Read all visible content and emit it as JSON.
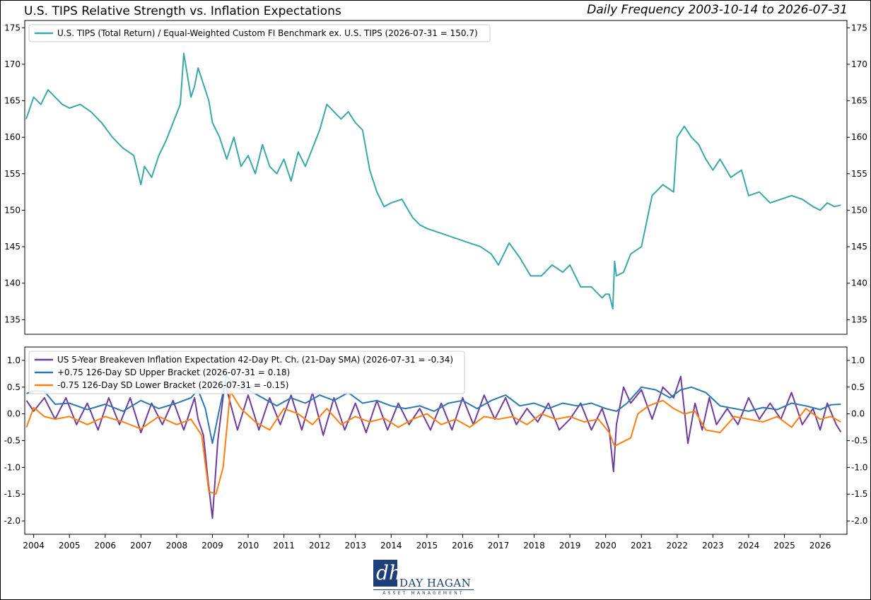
{
  "header": {
    "title": "U.S. TIPS Relative Strength vs. Inflation Expectations",
    "frequency": "Daily Frequency 2003-10-14 to 2026-07-31"
  },
  "logo": {
    "name": "DAY HAGAN",
    "sub": "ASSET MANAGEMENT",
    "mark": "dh"
  },
  "chart_data": [
    {
      "type": "line",
      "ylim": [
        133,
        176
      ],
      "xlim": [
        2003.75,
        2026.75
      ],
      "y_ticks": [
        135,
        140,
        145,
        150,
        155,
        160,
        165,
        170,
        175
      ],
      "y_tick_labels": [
        "135",
        "140",
        "145",
        "150",
        "155",
        "160",
        "165",
        "170",
        "175"
      ],
      "legend_location": "upper-left",
      "colors": {
        "tips": "#3aa8a8"
      },
      "series": [
        {
          "name": "U.S. TIPS (Total Return) / Equal-Weighted Custom FI Benchmark ex. U.S. TIPS (2026-07-31 = 150.7)",
          "x": [
            2003.79,
            2004.0,
            2004.2,
            2004.4,
            2004.6,
            2004.8,
            2005.0,
            2005.3,
            2005.6,
            2005.9,
            2006.2,
            2006.5,
            2006.8,
            2007.0,
            2007.1,
            2007.3,
            2007.5,
            2007.7,
            2007.9,
            2008.1,
            2008.2,
            2008.4,
            2008.5,
            2008.6,
            2008.7,
            2008.9,
            2009.0,
            2009.2,
            2009.4,
            2009.6,
            2009.8,
            2010.0,
            2010.2,
            2010.4,
            2010.6,
            2010.8,
            2011.0,
            2011.2,
            2011.4,
            2011.6,
            2011.8,
            2012.0,
            2012.2,
            2012.4,
            2012.6,
            2012.8,
            2013.0,
            2013.2,
            2013.4,
            2013.6,
            2013.8,
            2014.0,
            2014.3,
            2014.6,
            2014.8,
            2015.0,
            2015.3,
            2015.6,
            2015.9,
            2016.2,
            2016.5,
            2016.8,
            2017.0,
            2017.3,
            2017.6,
            2017.9,
            2018.2,
            2018.5,
            2018.8,
            2019.0,
            2019.3,
            2019.6,
            2019.9,
            2020.0,
            2020.1,
            2020.2,
            2020.25,
            2020.3,
            2020.5,
            2020.7,
            2021.0,
            2021.3,
            2021.6,
            2021.9,
            2022.0,
            2022.2,
            2022.4,
            2022.6,
            2022.8,
            2023.0,
            2023.2,
            2023.5,
            2023.8,
            2024.0,
            2024.3,
            2024.6,
            2024.9,
            2025.2,
            2025.5,
            2025.8,
            2026.0,
            2026.2,
            2026.4,
            2026.58
          ],
          "y": [
            162.5,
            165.5,
            164.5,
            166.5,
            165.5,
            164.5,
            164.0,
            164.5,
            163.5,
            162.0,
            160.0,
            158.5,
            157.5,
            153.5,
            156.0,
            154.5,
            157.5,
            159.5,
            162.0,
            164.5,
            171.5,
            165.5,
            167.0,
            169.5,
            168.0,
            165.0,
            162.0,
            160.0,
            157.0,
            160.0,
            156.0,
            157.5,
            155.0,
            159.0,
            156.0,
            155.0,
            157.0,
            154.0,
            158.0,
            156.0,
            158.5,
            161.0,
            164.5,
            163.5,
            162.5,
            163.5,
            162.0,
            161.0,
            155.5,
            152.5,
            150.5,
            151.0,
            151.5,
            149.0,
            148.0,
            147.5,
            147.0,
            146.5,
            146.0,
            145.5,
            145.0,
            144.0,
            142.5,
            145.5,
            143.5,
            141.0,
            141.0,
            142.5,
            141.5,
            142.5,
            139.5,
            139.5,
            138.0,
            138.5,
            138.5,
            136.5,
            143.0,
            141.0,
            141.5,
            144.0,
            145.0,
            152.0,
            153.5,
            152.5,
            160.0,
            161.5,
            160.0,
            159.0,
            157.0,
            155.5,
            157.0,
            154.5,
            155.5,
            152.0,
            152.5,
            151.0,
            151.5,
            152.0,
            151.5,
            150.5,
            150.0,
            151.0,
            150.5,
            150.7
          ]
        }
      ]
    },
    {
      "type": "line",
      "ylim": [
        -2.25,
        1.25
      ],
      "xlim": [
        2003.75,
        2026.75
      ],
      "y_ticks": [
        -2.0,
        -1.5,
        -1.0,
        -0.5,
        0.0,
        0.5,
        1.0
      ],
      "y_tick_labels": [
        "-2.0",
        "-1.5",
        "-1.0",
        "-0.5",
        "0.0",
        "0.5",
        "1.0"
      ],
      "x_ticks": [
        2004,
        2005,
        2006,
        2007,
        2008,
        2009,
        2010,
        2011,
        2012,
        2013,
        2014,
        2015,
        2016,
        2017,
        2018,
        2019,
        2020,
        2021,
        2022,
        2023,
        2024,
        2025,
        2026
      ],
      "x_tick_labels": [
        "2004",
        "2005",
        "2006",
        "2007",
        "2008",
        "2009",
        "2010",
        "2011",
        "2012",
        "2013",
        "2014",
        "2015",
        "2016",
        "2017",
        "2018",
        "2019",
        "2020",
        "2021",
        "2022",
        "2023",
        "2024",
        "2025",
        "2026"
      ],
      "legend_location": "upper-left",
      "colors": {
        "breakeven": "#6f3c9e",
        "upper": "#2a77b4",
        "lower": "#ff7f0e"
      },
      "series": [
        {
          "name": "US 5-Year Breakeven Inflation Expectation 42-Day Pt. Ch. (21-Day SMA) (2026-07-31 = -0.34)",
          "x": [
            2003.8,
            2004.0,
            2004.3,
            2004.6,
            2004.9,
            2005.2,
            2005.5,
            2005.8,
            2006.1,
            2006.4,
            2006.7,
            2007.0,
            2007.3,
            2007.6,
            2007.9,
            2008.2,
            2008.5,
            2008.6,
            2008.75,
            2008.87,
            2009.0,
            2009.15,
            2009.35,
            2009.5,
            2009.7,
            2010.0,
            2010.3,
            2010.6,
            2010.9,
            2011.2,
            2011.5,
            2011.8,
            2012.1,
            2012.4,
            2012.7,
            2013.0,
            2013.3,
            2013.6,
            2013.9,
            2014.2,
            2014.5,
            2014.8,
            2015.1,
            2015.4,
            2015.7,
            2016.0,
            2016.3,
            2016.6,
            2016.9,
            2017.2,
            2017.5,
            2017.8,
            2018.1,
            2018.4,
            2018.7,
            2019.0,
            2019.3,
            2019.6,
            2019.9,
            2020.0,
            2020.1,
            2020.22,
            2020.3,
            2020.5,
            2020.7,
            2021.0,
            2021.3,
            2021.6,
            2021.9,
            2022.1,
            2022.3,
            2022.5,
            2022.7,
            2022.9,
            2023.1,
            2023.4,
            2023.7,
            2024.0,
            2024.3,
            2024.6,
            2024.9,
            2025.2,
            2025.5,
            2025.8,
            2026.0,
            2026.2,
            2026.45,
            2026.58
          ],
          "y": [
            0.25,
            0.05,
            0.3,
            -0.1,
            0.3,
            -0.2,
            0.2,
            -0.3,
            0.3,
            -0.2,
            0.3,
            -0.35,
            0.2,
            -0.2,
            0.25,
            -0.3,
            0.3,
            -0.1,
            -0.4,
            -1.2,
            -1.95,
            -0.5,
            0.6,
            0.2,
            -0.3,
            0.35,
            -0.3,
            0.3,
            -0.2,
            0.35,
            -0.3,
            0.4,
            -0.4,
            0.3,
            -0.3,
            0.2,
            -0.35,
            0.25,
            -0.3,
            0.2,
            -0.2,
            0.1,
            -0.3,
            0.2,
            -0.3,
            0.3,
            -0.2,
            0.35,
            -0.1,
            0.3,
            -0.2,
            0.1,
            -0.15,
            0.2,
            -0.3,
            -0.1,
            0.2,
            -0.3,
            0.1,
            -0.1,
            -0.3,
            -1.08,
            -0.2,
            0.5,
            0.2,
            0.45,
            -0.1,
            0.5,
            0.3,
            0.7,
            -0.55,
            0.2,
            -0.3,
            0.3,
            -0.2,
            0.1,
            -0.2,
            0.3,
            -0.1,
            0.2,
            -0.1,
            0.4,
            -0.2,
            0.1,
            -0.3,
            0.2,
            -0.2,
            -0.34
          ]
        },
        {
          "name": "+0.75 126-Day SD Upper Bracket (2026-07-31 = 0.18)",
          "x": [
            2003.8,
            2004.0,
            2004.3,
            2004.6,
            2005.0,
            2005.5,
            2006.0,
            2006.5,
            2007.0,
            2007.5,
            2008.0,
            2008.4,
            2008.6,
            2008.8,
            2009.0,
            2009.2,
            2009.4,
            2009.6,
            2010.0,
            2010.4,
            2010.8,
            2011.2,
            2011.6,
            2012.0,
            2012.4,
            2012.8,
            2013.2,
            2013.6,
            2014.0,
            2014.4,
            2014.8,
            2015.2,
            2015.6,
            2016.0,
            2016.4,
            2016.8,
            2017.2,
            2017.6,
            2018.0,
            2018.4,
            2018.8,
            2019.2,
            2019.6,
            2020.0,
            2020.3,
            2020.6,
            2021.0,
            2021.4,
            2021.8,
            2022.1,
            2022.4,
            2022.8,
            2023.2,
            2023.6,
            2024.0,
            2024.4,
            2024.8,
            2025.2,
            2025.6,
            2026.0,
            2026.3,
            2026.58
          ],
          "y": [
            0.38,
            0.43,
            0.42,
            0.18,
            0.2,
            0.08,
            0.18,
            0.05,
            0.25,
            0.1,
            0.2,
            0.3,
            0.45,
            0.1,
            -0.55,
            0.1,
            0.72,
            0.5,
            0.45,
            0.3,
            0.15,
            0.3,
            0.2,
            0.35,
            0.25,
            0.4,
            0.2,
            0.25,
            0.15,
            0.1,
            0.15,
            0.05,
            0.2,
            0.25,
            0.1,
            0.25,
            0.35,
            0.15,
            0.2,
            0.1,
            0.2,
            0.15,
            0.2,
            0.1,
            0.05,
            0.2,
            0.5,
            0.45,
            0.3,
            0.45,
            0.5,
            0.4,
            0.15,
            0.1,
            0.05,
            0.12,
            0.08,
            0.2,
            0.15,
            0.08,
            0.17,
            0.18
          ]
        },
        {
          "name": "-0.75 126-Day SD Lower Bracket (2026-07-31 = -0.15)",
          "x": [
            2003.8,
            2004.0,
            2004.3,
            2004.6,
            2005.0,
            2005.5,
            2006.0,
            2006.5,
            2007.0,
            2007.5,
            2008.0,
            2008.4,
            2008.7,
            2008.9,
            2009.1,
            2009.3,
            2009.5,
            2009.8,
            2010.2,
            2010.6,
            2011.0,
            2011.4,
            2011.8,
            2012.2,
            2012.6,
            2013.0,
            2013.4,
            2013.8,
            2014.2,
            2014.6,
            2015.0,
            2015.4,
            2015.8,
            2016.2,
            2016.6,
            2017.0,
            2017.4,
            2017.8,
            2018.2,
            2018.6,
            2019.0,
            2019.4,
            2019.8,
            2020.1,
            2020.25,
            2020.4,
            2020.7,
            2020.9,
            2021.2,
            2021.6,
            2021.9,
            2022.2,
            2022.5,
            2022.8,
            2023.2,
            2023.6,
            2024.0,
            2024.4,
            2024.8,
            2025.2,
            2025.6,
            2026.0,
            2026.3,
            2026.58
          ],
          "y": [
            -0.25,
            0.12,
            -0.05,
            -0.1,
            -0.05,
            -0.2,
            -0.05,
            -0.15,
            -0.28,
            -0.05,
            -0.2,
            -0.1,
            -0.4,
            -1.45,
            -1.5,
            -1.0,
            0.42,
            0.1,
            -0.15,
            -0.3,
            0.1,
            0.0,
            -0.2,
            0.1,
            -0.2,
            -0.05,
            -0.15,
            -0.08,
            -0.25,
            -0.1,
            0.0,
            -0.2,
            -0.1,
            -0.25,
            -0.05,
            -0.1,
            -0.05,
            -0.2,
            0.0,
            -0.1,
            -0.05,
            -0.15,
            -0.1,
            -0.35,
            -0.6,
            -0.55,
            -0.45,
            0.0,
            0.15,
            0.25,
            0.1,
            0.0,
            0.05,
            -0.3,
            -0.35,
            -0.05,
            -0.1,
            -0.15,
            -0.05,
            -0.25,
            0.1,
            -0.1,
            -0.05,
            -0.15
          ]
        }
      ]
    }
  ]
}
